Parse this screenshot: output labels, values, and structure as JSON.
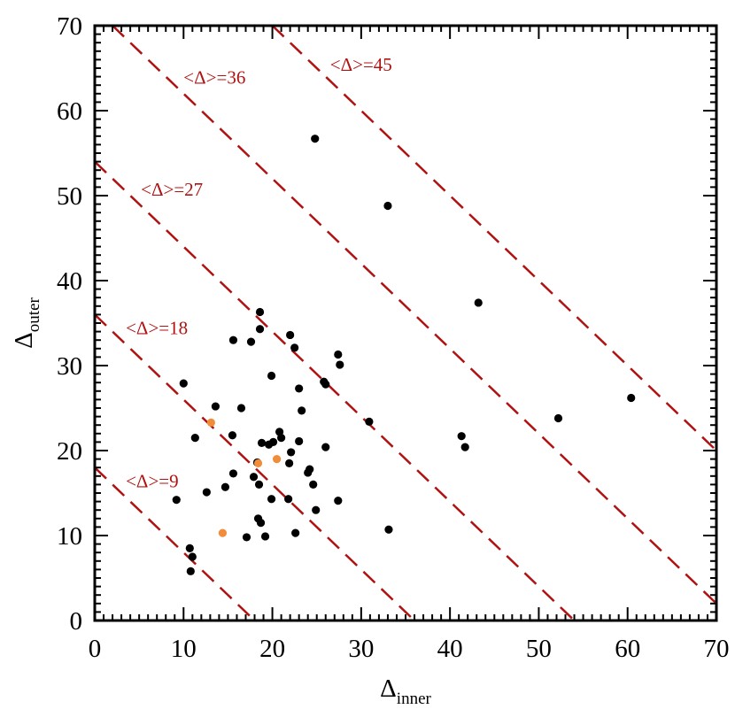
{
  "chart_data": {
    "type": "scatter",
    "title": "",
    "xlabel": "Δ",
    "xlabel_sub": "inner",
    "ylabel": "Δ",
    "ylabel_sub": "outer",
    "xlim": [
      0,
      70
    ],
    "ylim": [
      0,
      70
    ],
    "xticks": [
      "0",
      "10",
      "20",
      "30",
      "40",
      "50",
      "60",
      "70"
    ],
    "yticks": [
      "0",
      "10",
      "20",
      "30",
      "40",
      "50",
      "60",
      "70"
    ],
    "grid": false,
    "colors": {
      "black": "#000000",
      "orange": "#f08c3a",
      "lines": "#b01212"
    },
    "reference_lines": [
      {
        "label": "<Δ>=9",
        "intercept": 18
      },
      {
        "label": "<Δ>=18",
        "intercept": 36
      },
      {
        "label": "<Δ>=27",
        "intercept": 54
      },
      {
        "label": "<Δ>=36",
        "intercept": 72
      },
      {
        "label": "<Δ>=45",
        "intercept": 90
      }
    ],
    "series": [
      {
        "color": "#000000",
        "points": [
          [
            24.8,
            56.7
          ],
          [
            33.0,
            48.8
          ],
          [
            43.2,
            37.4
          ],
          [
            60.4,
            26.2
          ],
          [
            52.2,
            23.8
          ],
          [
            41.3,
            21.7
          ],
          [
            41.7,
            20.4
          ],
          [
            30.9,
            23.4
          ],
          [
            33.1,
            10.7
          ],
          [
            27.4,
            31.3
          ],
          [
            27.6,
            30.1
          ],
          [
            25.8,
            28.1
          ],
          [
            26.0,
            27.8
          ],
          [
            23.0,
            27.3
          ],
          [
            23.3,
            24.7
          ],
          [
            22.0,
            33.6
          ],
          [
            22.5,
            32.1
          ],
          [
            18.6,
            36.3
          ],
          [
            18.6,
            34.3
          ],
          [
            15.6,
            33.0
          ],
          [
            17.6,
            32.8
          ],
          [
            19.9,
            28.8
          ],
          [
            10.0,
            27.9
          ],
          [
            13.6,
            25.2
          ],
          [
            16.5,
            25.0
          ],
          [
            20.8,
            22.2
          ],
          [
            21.0,
            21.5
          ],
          [
            15.5,
            21.8
          ],
          [
            11.3,
            21.5
          ],
          [
            18.8,
            20.9
          ],
          [
            19.6,
            20.7
          ],
          [
            20.1,
            21.0
          ],
          [
            23.0,
            21.1
          ],
          [
            26.0,
            20.4
          ],
          [
            22.1,
            19.8
          ],
          [
            24.2,
            17.8
          ],
          [
            24.0,
            17.4
          ],
          [
            21.9,
            18.5
          ],
          [
            18.3,
            18.6
          ],
          [
            18.5,
            16.0
          ],
          [
            15.6,
            17.3
          ],
          [
            17.9,
            16.9
          ],
          [
            14.7,
            15.7
          ],
          [
            12.6,
            15.1
          ],
          [
            9.2,
            14.2
          ],
          [
            19.9,
            14.3
          ],
          [
            21.8,
            14.3
          ],
          [
            24.6,
            16.0
          ],
          [
            27.4,
            14.1
          ],
          [
            24.9,
            13.0
          ],
          [
            18.4,
            12.0
          ],
          [
            18.7,
            11.5
          ],
          [
            17.1,
            9.8
          ],
          [
            19.2,
            9.9
          ],
          [
            22.6,
            10.3
          ],
          [
            10.7,
            8.5
          ],
          [
            11.0,
            7.5
          ],
          [
            10.8,
            5.8
          ]
        ]
      },
      {
        "color": "#f08c3a",
        "points": [
          [
            13.1,
            23.3
          ],
          [
            18.4,
            18.5
          ],
          [
            20.5,
            19.0
          ],
          [
            14.4,
            10.3
          ]
        ]
      }
    ]
  }
}
